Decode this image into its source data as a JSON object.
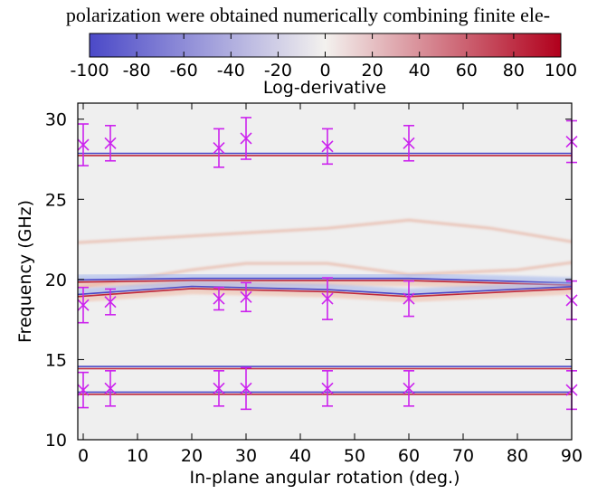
{
  "page": {
    "caption_text": "polarization were obtained numerically combining finite ele-"
  },
  "colorbar": {
    "label": "Log-derivative",
    "min": -100,
    "max": 100,
    "ticks": [
      "-100",
      "-80",
      "-60",
      "-40",
      "-20",
      "0",
      "20",
      "40",
      "60",
      "80",
      "100"
    ],
    "colors": {
      "low": "#4b49c8",
      "mid": "#f3f1ee",
      "high": "#b1001c"
    }
  },
  "chart_data": {
    "type": "heatmap",
    "xlabel": "In-plane angular rotation (deg.)",
    "ylabel": "Frequency (GHz)",
    "xlim": [
      -1,
      90
    ],
    "ylim": [
      10,
      31
    ],
    "xticks": [
      "0",
      "10",
      "20",
      "30",
      "40",
      "50",
      "60",
      "70",
      "80",
      "90"
    ],
    "yticks": [
      "10",
      "15",
      "20",
      "25",
      "30"
    ],
    "grid": false,
    "bands": [
      {
        "x": [
          0,
          90
        ],
        "y": [
          27.8,
          27.8
        ]
      },
      {
        "x": [
          0,
          20,
          40,
          60,
          90
        ],
        "y": [
          19.9,
          20.0,
          20.0,
          20.0,
          19.7
        ]
      },
      {
        "x": [
          0,
          20,
          45,
          60,
          90
        ],
        "y": [
          19.0,
          19.5,
          19.3,
          19.0,
          19.5
        ]
      },
      {
        "x": [
          0,
          90
        ],
        "y": [
          14.5,
          14.5
        ]
      },
      {
        "x": [
          0,
          90
        ],
        "y": [
          12.9,
          12.9
        ]
      }
    ],
    "faint_bands": [
      {
        "x": [
          30,
          45,
          60,
          75,
          90
        ],
        "y": [
          22.3,
          23.2,
          23.7,
          23.2,
          22.3
        ]
      },
      {
        "x": [
          5,
          20,
          30,
          45,
          60,
          80,
          90
        ],
        "y": [
          19.5,
          20.6,
          21.0,
          21.0,
          20.3,
          20.6,
          21.1
        ]
      }
    ],
    "series": [
      {
        "marker": "x",
        "color": "#cc22ee",
        "points": [
          {
            "x": 0,
            "y": 28.4,
            "err": 1.3
          },
          {
            "x": 5,
            "y": 28.5,
            "err": 1.1
          },
          {
            "x": 25,
            "y": 28.2,
            "err": 1.2
          },
          {
            "x": 30,
            "y": 28.8,
            "err": 1.3
          },
          {
            "x": 45,
            "y": 28.3,
            "err": 1.1
          },
          {
            "x": 60,
            "y": 28.5,
            "err": 1.1
          },
          {
            "x": 90,
            "y": 28.6,
            "err": 1.3
          },
          {
            "x": 0,
            "y": 18.4,
            "err": 1.1
          },
          {
            "x": 5,
            "y": 18.6,
            "err": 0.8
          },
          {
            "x": 25,
            "y": 18.8,
            "err": 0.7
          },
          {
            "x": 30,
            "y": 18.9,
            "err": 0.9
          },
          {
            "x": 45,
            "y": 18.8,
            "err": 1.3
          },
          {
            "x": 60,
            "y": 18.8,
            "err": 1.1
          },
          {
            "x": 90,
            "y": 18.7,
            "err": 1.2
          },
          {
            "x": 0,
            "y": 13.1,
            "err": 1.1
          },
          {
            "x": 5,
            "y": 13.2,
            "err": 1.1
          },
          {
            "x": 25,
            "y": 13.2,
            "err": 1.1
          },
          {
            "x": 30,
            "y": 13.2,
            "err": 1.3
          },
          {
            "x": 45,
            "y": 13.2,
            "err": 1.1
          },
          {
            "x": 60,
            "y": 13.2,
            "err": 1.1
          },
          {
            "x": 90,
            "y": 13.1,
            "err": 1.2
          }
        ]
      }
    ]
  }
}
